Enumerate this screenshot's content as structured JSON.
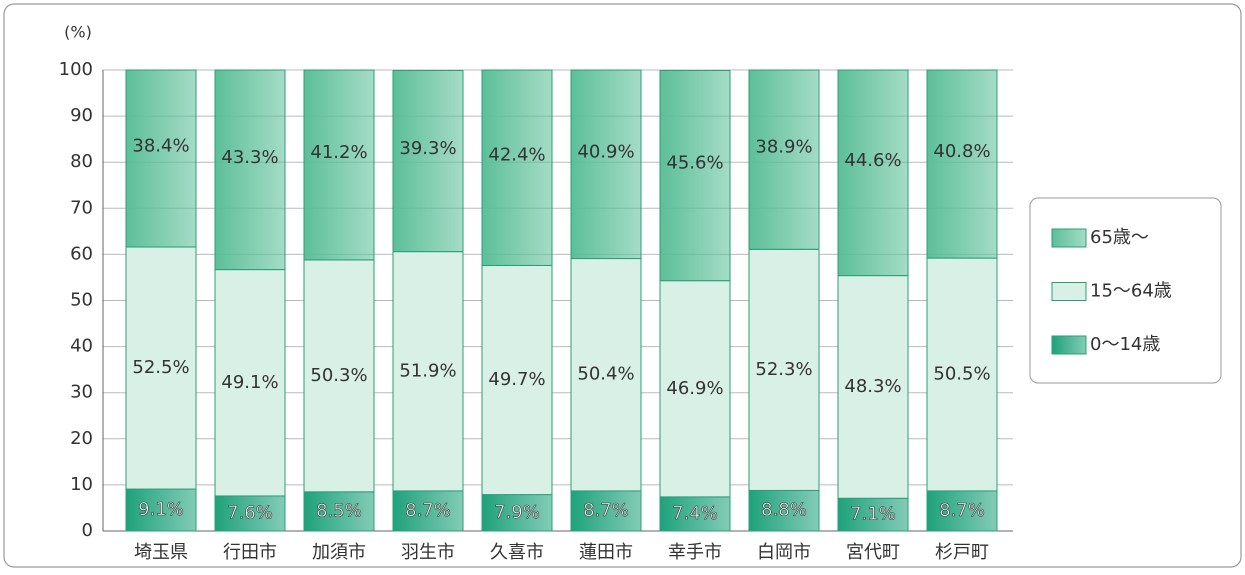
{
  "chart_data": {
    "type": "stacked-bar",
    "ylabel": "(%)",
    "categories": [
      "埼玉県",
      "行田市",
      "加須市",
      "羽生市",
      "久喜市",
      "蓮田市",
      "幸手市",
      "白岡市",
      "宮代町",
      "杉戸町"
    ],
    "series": [
      {
        "name": "0～14歳",
        "color": "#1ea27a",
        "values": [
          9.1,
          7.6,
          8.5,
          8.7,
          7.9,
          8.7,
          7.4,
          8.8,
          7.1,
          8.7
        ],
        "value_labels": [
          "9.1%",
          "7.6%",
          "8.5%",
          "8.7%",
          "7.9%",
          "8.7%",
          "7.4%",
          "8.8%",
          "7.1%",
          "8.7%"
        ]
      },
      {
        "name": "15～64歳",
        "color": "#d9f0e6",
        "values": [
          52.5,
          49.1,
          50.3,
          51.9,
          49.7,
          50.4,
          46.9,
          52.3,
          48.3,
          50.5
        ],
        "value_labels": [
          "52.5%",
          "49.1%",
          "50.3%",
          "51.9%",
          "49.7%",
          "50.4%",
          "46.9%",
          "52.3%",
          "48.3%",
          "50.5%"
        ]
      },
      {
        "name": "65歳～",
        "color": "#5cbf99",
        "values": [
          38.4,
          43.3,
          41.2,
          39.3,
          42.4,
          40.9,
          45.6,
          38.9,
          44.6,
          40.8
        ],
        "value_labels": [
          "38.4%",
          "43.3%",
          "41.2%",
          "39.3%",
          "42.4%",
          "40.9%",
          "45.6%",
          "38.9%",
          "44.6%",
          "40.8%"
        ]
      }
    ],
    "ylim": [
      0,
      100
    ],
    "yticks": [
      0,
      10,
      20,
      30,
      40,
      50,
      60,
      70,
      80,
      90,
      100
    ],
    "grid": true,
    "legend": "right"
  }
}
